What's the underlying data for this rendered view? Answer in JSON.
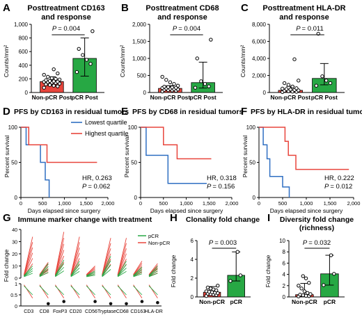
{
  "figure": {
    "row1": [
      {
        "letter": "A",
        "title1": "Posttreatment CD163",
        "title2": "and response",
        "ylabel": "Counts/mm²",
        "p": "= 0.004"
      },
      {
        "letter": "B",
        "title1": "Posttreatment CD68",
        "title2": "and response",
        "ylabel": "Counts/mm²",
        "p": "= 0.004"
      },
      {
        "letter": "C",
        "title1": "Posttreatment HLA-DR",
        "title2": "and response",
        "ylabel": "Counts/mm²",
        "p": "= 0.011"
      }
    ],
    "row2": [
      {
        "letter": "D",
        "title": "PFS by CD163 in residual tumors",
        "hr": "HR, 0.263",
        "p": "= 0.062"
      },
      {
        "letter": "E",
        "title": "PFS by CD68 in residual tumors",
        "hr": "HR, 0.318",
        "p": "= 0.156"
      },
      {
        "letter": "F",
        "title": "PFS by HLA-DR in residual tumors",
        "hr": "HR, 0.222",
        "p": "= 0.012"
      }
    ],
    "km_ylabel": "Percent survival",
    "km_xlabel": "Days elapsed since surgery",
    "km_legend": [
      "Lowest quartile",
      "Highest quartile"
    ],
    "G": {
      "letter": "G",
      "title": "Immune marker change with treatment",
      "ylabel": "Fold change",
      "legend": [
        "pCR",
        "Non-pCR"
      ]
    },
    "H": {
      "letter": "H",
      "title": "Clonality fold change",
      "ylabel": "Fold change",
      "p": "= 0.003"
    },
    "I": {
      "letter": "I",
      "title1": "Diversity fold change",
      "title2": "(richness)",
      "ylabel": "Fold change",
      "p": "= 0.032"
    },
    "p_letter": "P"
  },
  "colors": {
    "red": "#e8453c",
    "green": "#27a844",
    "blue": "#2f6fc2",
    "black": "#111111"
  },
  "chart_data": [
    {
      "id": "A",
      "type": "bar",
      "categories": [
        "Non-pCR Post",
        "pCR Post"
      ],
      "values": [
        160,
        500
      ],
      "errors_upper": [
        230,
        800
      ],
      "errors_lower": [
        100,
        240
      ],
      "ylim": [
        0,
        1000
      ],
      "yticks": [
        "0",
        "200",
        "400",
        "600",
        "800",
        "1,000"
      ],
      "points": [
        [
          70,
          90,
          100,
          110,
          120,
          130,
          140,
          145,
          150,
          155,
          160,
          165,
          170,
          180,
          190,
          200,
          210,
          230,
          260,
          280,
          340
        ],
        [
          300,
          420,
          480,
          550,
          640,
          900
        ]
      ],
      "title": "Posttreatment CD163 and response",
      "ylabel": "Counts/mm²"
    },
    {
      "id": "B",
      "type": "bar",
      "categories": [
        "Non-pCR Post",
        "pCR Post"
      ],
      "values": [
        120,
        290
      ],
      "errors_upper": [
        200,
        890
      ],
      "errors_lower": [
        80,
        130
      ],
      "ylim": [
        0,
        2000
      ],
      "yticks": [
        "0",
        "500",
        "1,000",
        "1,500",
        "2,000"
      ],
      "points": [
        [
          30,
          50,
          60,
          70,
          80,
          90,
          100,
          110,
          120,
          130,
          140,
          150,
          160,
          170,
          200,
          250,
          300,
          370,
          460
        ],
        [
          140,
          180,
          250,
          330,
          1000,
          1550
        ]
      ],
      "title": "Posttreatment CD68 and response",
      "ylabel": "Counts/mm²"
    },
    {
      "id": "C",
      "type": "bar",
      "categories": [
        "Non-pCR Post",
        "pCR Post"
      ],
      "values": [
        250,
        1650
      ],
      "errors_upper": [
        720,
        3400
      ],
      "errors_lower": [
        100,
        900
      ],
      "ylim": [
        0,
        8000
      ],
      "yticks": [
        "0",
        "2,000",
        "4,000",
        "6,000",
        "8,000"
      ],
      "points": [
        [
          50,
          80,
          100,
          150,
          200,
          250,
          300,
          350,
          400,
          450,
          500,
          700,
          900,
          1100,
          1400,
          3900
        ],
        [
          800,
          1100,
          1400,
          1900,
          6900
        ]
      ],
      "title": "Posttreatment HLA-DR and response",
      "ylabel": "Counts/mm²"
    },
    {
      "id": "D",
      "type": "line",
      "xlim": [
        0,
        2000
      ],
      "xticks": [
        "0",
        "500",
        "1,000",
        "1,500",
        "2,000"
      ],
      "ylim": [
        0,
        100
      ],
      "yticks": [
        "0",
        "50",
        "100"
      ],
      "series": [
        {
          "name": "Lowest quartile",
          "points": [
            [
              0,
              100
            ],
            [
              120,
              100
            ],
            [
              120,
              75
            ],
            [
              450,
              75
            ],
            [
              450,
              50
            ],
            [
              560,
              50
            ],
            [
              560,
              25
            ],
            [
              650,
              25
            ],
            [
              650,
              0
            ]
          ]
        },
        {
          "name": "Highest quartile",
          "points": [
            [
              0,
              100
            ],
            [
              180,
              100
            ],
            [
              180,
              75
            ],
            [
              600,
              75
            ],
            [
              600,
              50
            ],
            [
              1750,
              50
            ]
          ]
        }
      ]
    },
    {
      "id": "E",
      "type": "line",
      "xlim": [
        0,
        2000
      ],
      "xticks": [
        "0",
        "500",
        "1,000",
        "1,500",
        "2,000"
      ],
      "ylim": [
        0,
        100
      ],
      "yticks": [
        "0",
        "50",
        "100"
      ],
      "series": [
        {
          "name": "Lowest quartile",
          "points": [
            [
              0,
              100
            ],
            [
              120,
              100
            ],
            [
              120,
              60
            ],
            [
              600,
              60
            ],
            [
              600,
              20
            ],
            [
              1450,
              20
            ]
          ]
        },
        {
          "name": "Highest quartile",
          "points": [
            [
              0,
              100
            ],
            [
              500,
              100
            ],
            [
              500,
              75
            ],
            [
              800,
              75
            ],
            [
              800,
              55
            ],
            [
              1550,
              55
            ]
          ]
        }
      ]
    },
    {
      "id": "F",
      "type": "line",
      "xlim": [
        0,
        2000
      ],
      "xticks": [
        "0",
        "500",
        "1,000",
        "1,500",
        "2,000"
      ],
      "ylim": [
        0,
        100
      ],
      "yticks": [
        "0",
        "50",
        "100"
      ],
      "series": [
        {
          "name": "Lowest quartile",
          "points": [
            [
              0,
              100
            ],
            [
              90,
              100
            ],
            [
              90,
              75
            ],
            [
              170,
              75
            ],
            [
              170,
              55
            ],
            [
              230,
              55
            ],
            [
              230,
              30
            ],
            [
              500,
              30
            ],
            [
              500,
              15
            ],
            [
              640,
              15
            ],
            [
              640,
              0
            ]
          ]
        },
        {
          "name": "Highest quartile",
          "points": [
            [
              0,
              100
            ],
            [
              550,
              100
            ],
            [
              550,
              80
            ],
            [
              620,
              80
            ],
            [
              620,
              60
            ],
            [
              780,
              60
            ],
            [
              780,
              40
            ],
            [
              1900,
              40
            ]
          ]
        }
      ]
    },
    {
      "id": "G",
      "type": "line",
      "categories": [
        "CD3",
        "CD8",
        "FoxP3",
        "CD20",
        "CD56",
        "Tryptase",
        "CD68",
        "CD163",
        "HLA-DR"
      ],
      "upper_ylim": [
        0,
        40
      ],
      "upper_yticks": [
        "0",
        "10",
        "20",
        "30",
        "40"
      ],
      "lower_ylim": [
        0,
        1
      ],
      "lower_yticks": [
        "0",
        "0.5",
        "1"
      ],
      "pcr_end": [
        10,
        12,
        15,
        14,
        6,
        18,
        14,
        9,
        10
      ],
      "nonpcr_end": [
        34,
        13,
        38,
        34,
        10,
        33,
        33,
        14,
        12
      ],
      "dot_end": [
        null,
        0.1,
        0.2,
        null,
        0.2,
        0.1,
        0.1,
        0.2,
        0.15
      ]
    },
    {
      "id": "H",
      "type": "bar",
      "categories": [
        "Non-pCR",
        "pCR"
      ],
      "values": [
        0.5,
        2.3
      ],
      "errors_upper": [
        1.1,
        4.8
      ],
      "errors_lower": [
        0.2,
        1.7
      ],
      "ylim": [
        0,
        6
      ],
      "yticks": [
        "0",
        "2",
        "4",
        "6"
      ],
      "points": [
        [
          0.1,
          0.2,
          0.25,
          0.3,
          0.35,
          0.4,
          0.45,
          0.5,
          0.55,
          0.6,
          0.7,
          0.8,
          0.9,
          1.0,
          1.2
        ],
        [
          1.7,
          2.3,
          4.8
        ]
      ]
    },
    {
      "id": "I",
      "type": "bar",
      "categories": [
        "Non-pCR",
        "pCR"
      ],
      "values": [
        0.4,
        4.1
      ],
      "errors_upper": [
        2.4,
        7.4
      ],
      "errors_lower": [
        0.1,
        2.1
      ],
      "ylim": [
        0,
        10
      ],
      "yticks": [
        "0",
        "2",
        "4",
        "6",
        "8",
        "10"
      ],
      "points": [
        [
          0.1,
          0.15,
          0.2,
          0.3,
          0.4,
          0.5,
          0.7,
          1.0,
          1.5,
          2.0,
          2.5,
          3.3,
          3.7
        ],
        [
          2.1,
          4.1,
          7.4
        ]
      ]
    }
  ]
}
